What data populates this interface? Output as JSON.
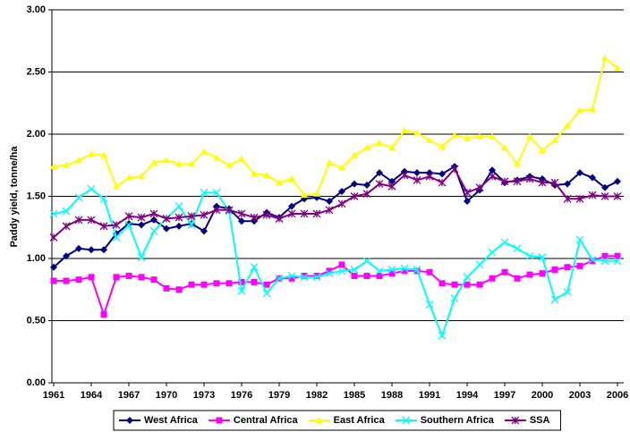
{
  "chart_data": {
    "type": "line",
    "y_label": "Paddy yield, tonne/ha",
    "x": [
      1961,
      1962,
      1963,
      1964,
      1965,
      1966,
      1967,
      1968,
      1969,
      1970,
      1971,
      1972,
      1973,
      1974,
      1975,
      1976,
      1977,
      1978,
      1979,
      1980,
      1981,
      1982,
      1983,
      1984,
      1985,
      1986,
      1987,
      1988,
      1989,
      1990,
      1991,
      1992,
      1993,
      1994,
      1995,
      1996,
      1997,
      1998,
      1999,
      2000,
      2001,
      2002,
      2003,
      2004,
      2005,
      2006
    ],
    "xlim": [
      1961,
      2006
    ],
    "xticks": [
      1961,
      1964,
      1967,
      1970,
      1973,
      1976,
      1979,
      1982,
      1985,
      1988,
      1991,
      1994,
      1997,
      2000,
      2003,
      2006
    ],
    "ylim": [
      0,
      3
    ],
    "yticks": [
      {
        "value": 0,
        "label": "0.00"
      },
      {
        "value": 0.5,
        "label": "0.50"
      },
      {
        "value": 1,
        "label": "1.00"
      },
      {
        "value": 1.5,
        "label": "1.50"
      },
      {
        "value": 2,
        "label": "2.00"
      },
      {
        "value": 2.5,
        "label": "2.50"
      },
      {
        "value": 3,
        "label": "3.00"
      }
    ],
    "grid": true,
    "legend": "bottom",
    "series": [
      {
        "name": "West Africa",
        "color": "#000080",
        "marker": "diamond",
        "values": [
          0.93,
          1.02,
          1.08,
          1.07,
          1.07,
          1.2,
          1.28,
          1.27,
          1.31,
          1.24,
          1.26,
          1.28,
          1.22,
          1.42,
          1.4,
          1.3,
          1.3,
          1.37,
          1.33,
          1.42,
          1.48,
          1.49,
          1.46,
          1.54,
          1.6,
          1.59,
          1.69,
          1.62,
          1.7,
          1.69,
          1.69,
          1.68,
          1.74,
          1.46,
          1.55,
          1.71,
          1.61,
          1.63,
          1.66,
          1.64,
          1.59,
          1.6,
          1.69,
          1.65,
          1.57,
          1.62
        ]
      },
      {
        "name": "Central Africa",
        "color": "#ff00ff",
        "marker": "square",
        "values": [
          0.82,
          0.82,
          0.83,
          0.85,
          0.55,
          0.85,
          0.86,
          0.85,
          0.83,
          0.76,
          0.75,
          0.79,
          0.79,
          0.8,
          0.8,
          0.81,
          0.81,
          0.79,
          0.84,
          0.84,
          0.86,
          0.86,
          0.9,
          0.95,
          0.86,
          0.86,
          0.86,
          0.88,
          0.9,
          0.9,
          0.89,
          0.8,
          0.79,
          0.79,
          0.79,
          0.84,
          0.89,
          0.84,
          0.87,
          0.88,
          0.91,
          0.93,
          0.94,
          0.98,
          1.02,
          1.02
        ]
      },
      {
        "name": "East Africa",
        "color": "#ffff00",
        "marker": "triangle",
        "values": [
          1.74,
          1.75,
          1.79,
          1.84,
          1.83,
          1.58,
          1.65,
          1.66,
          1.77,
          1.79,
          1.76,
          1.76,
          1.86,
          1.81,
          1.75,
          1.8,
          1.68,
          1.67,
          1.61,
          1.64,
          1.51,
          1.52,
          1.77,
          1.73,
          1.83,
          1.89,
          1.93,
          1.89,
          2.03,
          2.01,
          1.95,
          1.9,
          1.99,
          1.97,
          1.98,
          1.98,
          1.89,
          1.76,
          1.98,
          1.87,
          1.95,
          2.07,
          2.19,
          2.2,
          2.61,
          2.53
        ]
      },
      {
        "name": "Southern Africa",
        "color": "#00ffff",
        "marker": "cross",
        "values": [
          1.36,
          1.38,
          1.49,
          1.56,
          1.48,
          1.17,
          1.27,
          1.01,
          1.22,
          1.32,
          1.42,
          1.27,
          1.53,
          1.53,
          1.38,
          0.74,
          0.93,
          0.72,
          0.84,
          0.86,
          0.85,
          0.85,
          0.88,
          0.9,
          0.91,
          0.98,
          0.9,
          0.91,
          0.92,
          0.91,
          0.63,
          0.38,
          0.68,
          0.85,
          0.95,
          1.05,
          1.13,
          1.08,
          1.02,
          1.01,
          0.67,
          0.73,
          1.15,
          0.99,
          0.98,
          0.98
        ]
      },
      {
        "name": "SSA",
        "color": "#800080",
        "marker": "star",
        "values": [
          1.17,
          1.26,
          1.31,
          1.31,
          1.26,
          1.27,
          1.34,
          1.33,
          1.36,
          1.32,
          1.33,
          1.34,
          1.35,
          1.39,
          1.39,
          1.36,
          1.33,
          1.35,
          1.32,
          1.36,
          1.36,
          1.36,
          1.39,
          1.44,
          1.5,
          1.52,
          1.6,
          1.58,
          1.67,
          1.63,
          1.66,
          1.61,
          1.72,
          1.53,
          1.57,
          1.66,
          1.62,
          1.62,
          1.64,
          1.61,
          1.61,
          1.48,
          1.48,
          1.51,
          1.5,
          1.5
        ]
      }
    ]
  }
}
